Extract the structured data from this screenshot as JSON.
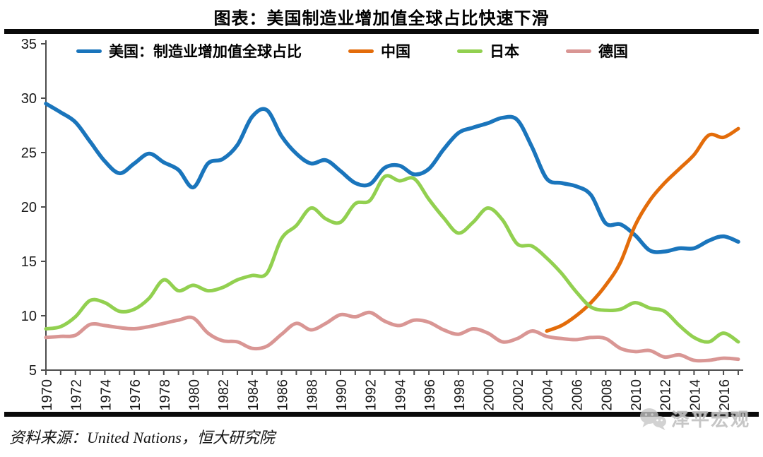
{
  "title": "图表：美国制造业增加值全球占比快速下滑",
  "source": "资料来源：United Nations，恒大研究院",
  "watermark": "泽平宏观",
  "chart_data": {
    "type": "line",
    "title": "图表：美国制造业增加值全球占比快速下滑",
    "xlabel": "",
    "ylabel": "",
    "ylim": [
      5,
      35
    ],
    "ytick_step": 5,
    "x_start": 1970,
    "x_end": 2017,
    "xtick_every": 1,
    "xtick_label_every": 2,
    "xtick_label_last": 2016,
    "grid": false,
    "legend_position": "top",
    "series": [
      {
        "key": "us",
        "name": "美国：制造业增加值全球占比",
        "color": "#1a75bc",
        "start_year": 1970,
        "values": [
          29.5,
          28.7,
          27.8,
          26.0,
          24.2,
          23.1,
          24.0,
          24.9,
          24.1,
          23.4,
          21.8,
          24.0,
          24.4,
          25.7,
          28.3,
          28.9,
          26.5,
          24.9,
          24.0,
          24.3,
          23.3,
          22.2,
          22.1,
          23.6,
          23.8,
          23.0,
          23.5,
          25.3,
          26.8,
          27.3,
          27.7,
          28.2,
          28.0,
          25.5,
          22.6,
          22.2,
          21.9,
          21.1,
          18.5,
          18.4,
          17.4,
          16.0,
          15.9,
          16.2,
          16.2,
          16.9,
          17.3,
          16.8
        ]
      },
      {
        "key": "china",
        "name": "中国",
        "color": "#e36c0a",
        "start_year": 2004,
        "values": [
          8.6,
          9.1,
          10.0,
          11.2,
          12.8,
          14.9,
          18.3,
          20.6,
          22.2,
          23.5,
          24.8,
          26.6,
          26.4,
          27.2
        ]
      },
      {
        "key": "japan",
        "name": "日本",
        "color": "#92d050",
        "start_year": 1970,
        "values": [
          8.8,
          9.0,
          9.9,
          11.4,
          11.2,
          10.4,
          10.6,
          11.6,
          13.3,
          12.3,
          12.8,
          12.3,
          12.6,
          13.3,
          13.7,
          13.9,
          17.1,
          18.3,
          19.9,
          18.9,
          18.6,
          20.3,
          20.6,
          22.8,
          22.4,
          22.6,
          20.7,
          19.0,
          17.6,
          18.6,
          19.9,
          18.8,
          16.6,
          16.4,
          15.3,
          13.9,
          12.2,
          10.8,
          10.5,
          10.6,
          11.2,
          10.7,
          10.4,
          9.1,
          8.0,
          7.6,
          8.4,
          7.6
        ]
      },
      {
        "key": "germany",
        "name": "德国",
        "color": "#d99694",
        "start_year": 1970,
        "values": [
          8.0,
          8.1,
          8.2,
          9.2,
          9.1,
          8.9,
          8.8,
          9.0,
          9.3,
          9.6,
          9.8,
          8.4,
          7.7,
          7.6,
          7.0,
          7.2,
          8.3,
          9.3,
          8.7,
          9.3,
          10.1,
          9.9,
          10.3,
          9.5,
          9.1,
          9.6,
          9.4,
          8.7,
          8.3,
          8.8,
          8.4,
          7.6,
          7.9,
          8.6,
          8.1,
          7.9,
          7.8,
          8.0,
          7.9,
          7.0,
          6.7,
          6.8,
          6.2,
          6.4,
          5.9,
          5.9,
          6.1,
          6.0
        ]
      }
    ]
  }
}
